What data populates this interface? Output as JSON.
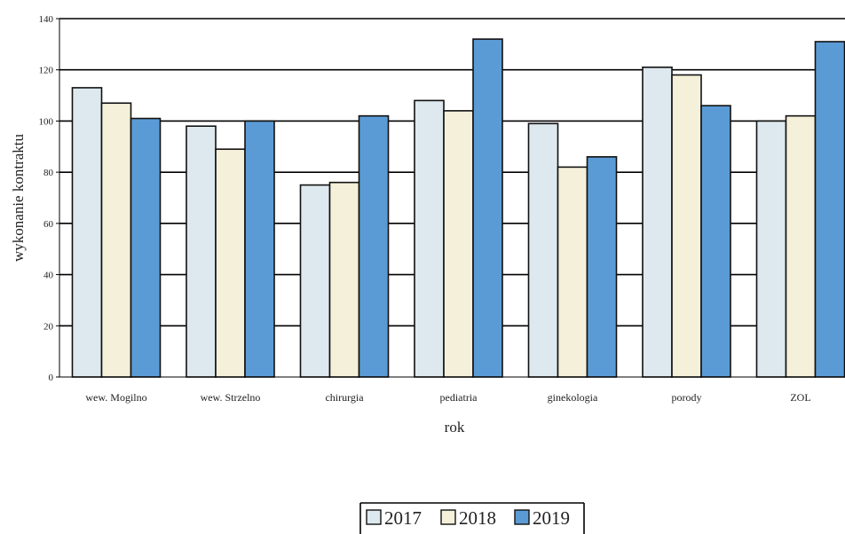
{
  "chart_data": {
    "type": "bar",
    "categories": [
      "wew. Mogilno",
      "wew. Strzelno",
      "chirurgia",
      "pediatria",
      "ginekologia",
      "porody",
      "ZOL"
    ],
    "series": [
      {
        "name": "2017",
        "color": "#dde9ef",
        "values": [
          113,
          98,
          75,
          108,
          99,
          121,
          100
        ]
      },
      {
        "name": "2018",
        "color": "#f4f0d9",
        "values": [
          107,
          89,
          76,
          104,
          82,
          118,
          102
        ]
      },
      {
        "name": "2019",
        "color": "#5b9bd5",
        "values": [
          101,
          100,
          102,
          132,
          86,
          106,
          131
        ]
      }
    ],
    "xlabel": "rok",
    "ylabel": "wykonanie kontraktu",
    "ylim": [
      0,
      140
    ],
    "yticks": [
      0,
      20,
      40,
      60,
      80,
      100,
      120,
      140
    ],
    "grid": true,
    "legend_position": "bottom-center"
  }
}
